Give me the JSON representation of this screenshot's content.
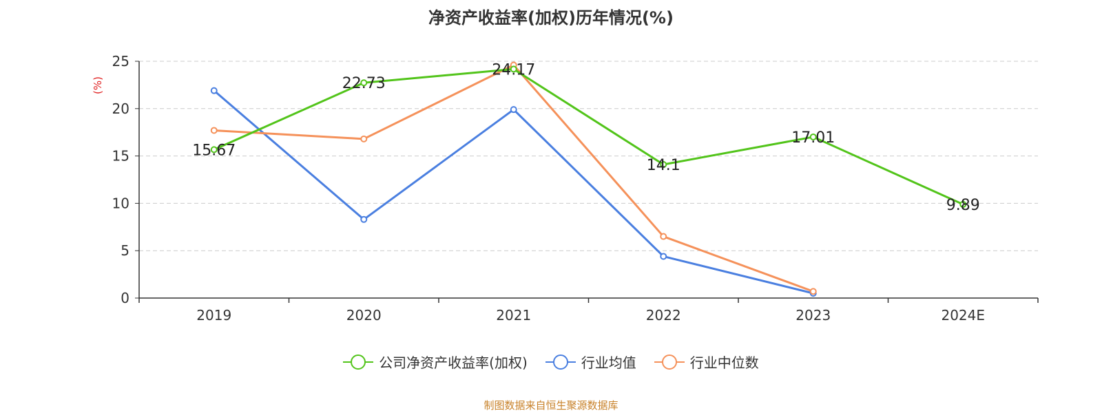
{
  "chart_data": {
    "type": "line",
    "title": "净资产收益率(加权)历年情况(%)",
    "ylabel": "(%)",
    "categories": [
      "2019",
      "2020",
      "2021",
      "2022",
      "2023",
      "2024E"
    ],
    "yticks": [
      0,
      5,
      10,
      15,
      20,
      25
    ],
    "ylim": [
      0,
      25
    ],
    "grid": true,
    "legend_position": "bottom",
    "series": [
      {
        "name": "公司净资产收益率(加权)",
        "color": "#52c41a",
        "values": [
          15.67,
          22.73,
          24.17,
          14.1,
          17.01,
          9.89
        ],
        "labels": [
          "15.67",
          "22.73",
          "24.17",
          "14.1",
          "17.01",
          "9.89"
        ]
      },
      {
        "name": "行业均值",
        "color": "#4a7fe0",
        "values": [
          21.9,
          8.3,
          19.9,
          4.4,
          0.5,
          null
        ]
      },
      {
        "name": "行业中位数",
        "color": "#f5915a",
        "values": [
          17.7,
          16.8,
          24.6,
          6.5,
          0.7,
          null
        ]
      }
    ]
  },
  "footer": {
    "source": "制图数据来自恒生聚源数据库"
  }
}
